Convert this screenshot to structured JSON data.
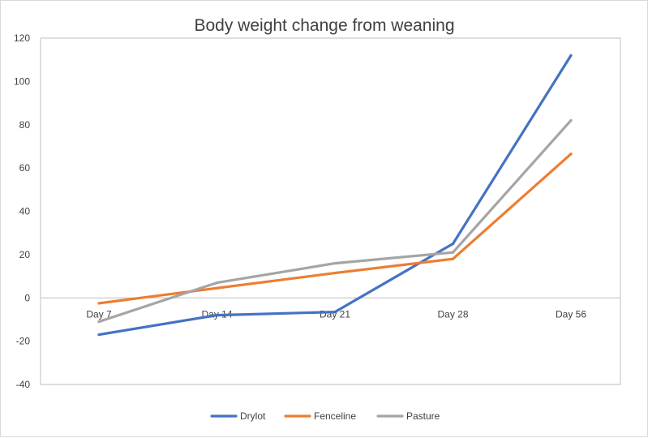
{
  "chart_data": {
    "type": "line",
    "title": "Body weight change from weaning",
    "xlabel": "",
    "ylabel": "",
    "categories": [
      "Day 7",
      "Day 14",
      "Day 21",
      "Day 28",
      "Day 56"
    ],
    "ylim": [
      -40,
      120
    ],
    "yticks": [
      -40,
      -20,
      0,
      20,
      40,
      60,
      80,
      100,
      120
    ],
    "grid": false,
    "legend": "bottom",
    "series": [
      {
        "name": "Drylot",
        "color": "#4472c4",
        "values": [
          -17,
          -8,
          -6.5,
          25,
          112
        ]
      },
      {
        "name": "Fenceline",
        "color": "#ed7d31",
        "values": [
          -2.5,
          4.5,
          11.5,
          18,
          66.5
        ]
      },
      {
        "name": "Pasture",
        "color": "#a5a5a5",
        "values": [
          -11,
          7,
          16,
          21,
          82
        ]
      }
    ]
  }
}
